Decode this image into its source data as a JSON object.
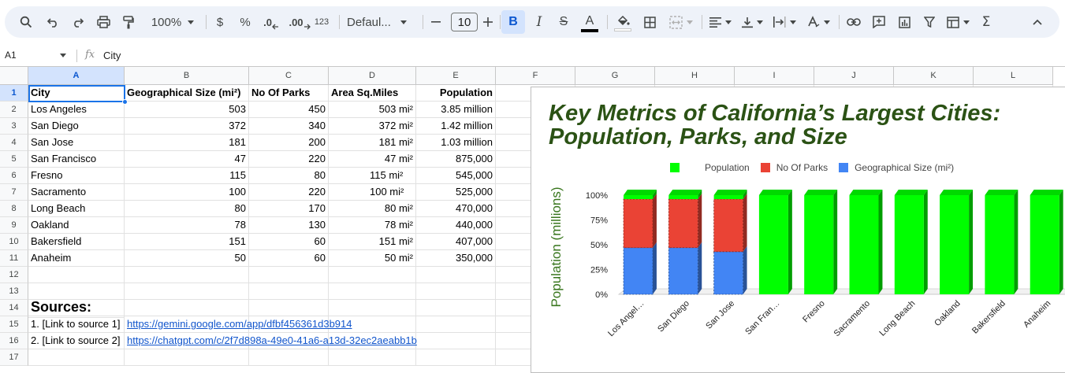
{
  "toolbar": {
    "zoom": "100%",
    "currency": "$",
    "percent": "%",
    "dec_decrease": ".0",
    "dec_increase": ".00",
    "number_format": "123",
    "font_family": "Defaul...",
    "font_size": "10",
    "bold": "B",
    "italic": "I",
    "strike": "S",
    "text_color": "A",
    "sigma": "Σ"
  },
  "formula_bar": {
    "cell_ref": "A1",
    "fx": "fx",
    "content": "City"
  },
  "columns": [
    "A",
    "B",
    "C",
    "D",
    "E",
    "F",
    "G",
    "H",
    "I",
    "J",
    "K",
    "L"
  ],
  "rows": [
    "1",
    "2",
    "3",
    "4",
    "5",
    "6",
    "7",
    "8",
    "9",
    "10",
    "11",
    "12",
    "13",
    "14",
    "15",
    "16",
    "17"
  ],
  "table": {
    "headers": [
      "City",
      "Geographical Size (mi²)",
      "No Of Parks",
      "Area Sq.Miles",
      "Population"
    ],
    "rows": [
      [
        "Los Angeles",
        "503",
        "450",
        "503 mi²",
        "3.85 million"
      ],
      [
        "San Diego",
        "372",
        "340",
        "372 mi²",
        "1.42 million"
      ],
      [
        "San Jose",
        "181",
        "200",
        "181 mi²",
        "1.03 million"
      ],
      [
        "San Francisco",
        "47",
        "220",
        "47 mi²",
        "875,000"
      ],
      [
        "Fresno",
        "115",
        "80",
        "115 mi²",
        "545,000"
      ],
      [
        "Sacramento",
        "100",
        "220",
        "100 mi²",
        "525,000"
      ],
      [
        "Long Beach",
        "80",
        "170",
        "80 mi²",
        "470,000"
      ],
      [
        "Oakland",
        "78",
        "130",
        "78 mi²",
        "440,000"
      ],
      [
        "Bakersfield",
        "151",
        "60",
        "151 mi²",
        "407,000"
      ],
      [
        "Anaheim",
        "50",
        "60",
        "50 mi²",
        "350,000"
      ]
    ]
  },
  "sources": {
    "heading": "Sources:",
    "items": [
      {
        "label": "1. [Link to source 1]",
        "url": "https://gemini.google.com/app/dfbf456361d3b914"
      },
      {
        "label": "2. [Link to source 2]",
        "url": "https://chatgpt.com/c/2f7d898a-49e0-41a6-a13d-32ec2aeabb1b"
      }
    ]
  },
  "colors": {
    "population": "#00ff00",
    "parks": "#ea4335",
    "geo": "#4285f4",
    "title": "#2b5215",
    "ylabel": "#38761d",
    "selection": "#1a73e8"
  },
  "chart_data": {
    "type": "bar",
    "stacked": "100%",
    "title": "Key Metrics of California’s Largest Cities: Population, Parks, and Size",
    "ylabel": "Population (millions)",
    "xlabel": "",
    "ylim": [
      0,
      1
    ],
    "y_ticks": [
      "100%",
      "75%",
      "50%",
      "25%",
      "0%"
    ],
    "categories": [
      "Los Angel…",
      "San Diego",
      "San Jose",
      "San Fran…",
      "Fresno",
      "Sacramento",
      "Long Beach",
      "Oakland",
      "Bakersfield",
      "Anaheim"
    ],
    "series": [
      {
        "name": "Geographical Size (mi²)",
        "values": [
          0.47,
          0.47,
          0.43,
          0,
          0,
          0,
          0,
          0,
          0,
          0
        ]
      },
      {
        "name": "No Of Parks",
        "values": [
          0.49,
          0.49,
          0.53,
          0,
          0,
          0,
          0,
          0,
          0,
          0
        ]
      },
      {
        "name": "Population",
        "values": [
          0.04,
          0.04,
          0.04,
          1,
          1,
          1,
          1,
          1,
          1,
          1
        ]
      }
    ],
    "legend": [
      "Population",
      "No Of Parks",
      "Geographical Size (mi²)"
    ],
    "legend_position": "top",
    "grid": false
  }
}
